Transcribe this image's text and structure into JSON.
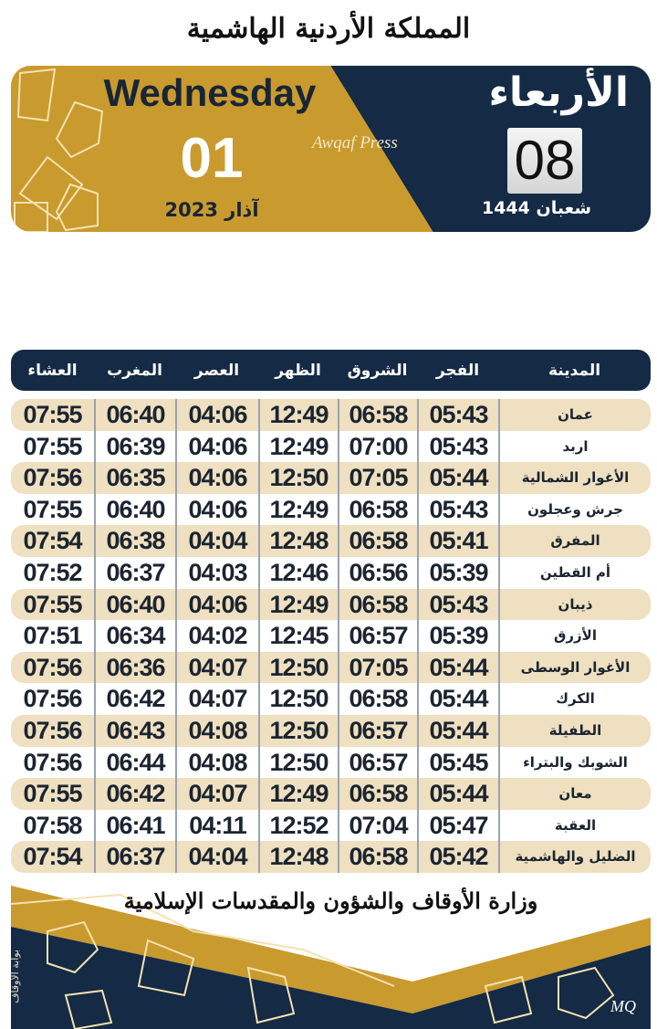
{
  "header": {
    "kingdom_title": "المملكة الأردنية الهاشمية"
  },
  "banner": {
    "weekday_en": "Wednesday",
    "gregorian_day": "01",
    "gregorian_month_year": "آذار 2023",
    "watermark": "Awqaf Press",
    "weekday_ar": "الأربعاء",
    "hijri_day": "08",
    "hijri_month_year": "شعبان 1444"
  },
  "colors": {
    "gold": "#c99a2e",
    "navy": "#142a45",
    "row_alt": "#eee0c0"
  },
  "table": {
    "columns": [
      "المدينة",
      "الفجر",
      "الشروق",
      "الظهر",
      "العصر",
      "المغرب",
      "العشاء"
    ],
    "rows": [
      [
        "عمان",
        "05:43",
        "06:58",
        "12:49",
        "04:06",
        "06:40",
        "07:55"
      ],
      [
        "اربد",
        "05:43",
        "07:00",
        "12:49",
        "04:06",
        "06:39",
        "07:55"
      ],
      [
        "الأغوار الشمالية",
        "05:44",
        "07:05",
        "12:50",
        "04:06",
        "06:35",
        "07:56"
      ],
      [
        "جرش وعجلون",
        "05:43",
        "06:58",
        "12:49",
        "04:06",
        "06:40",
        "07:55"
      ],
      [
        "المفرق",
        "05:41",
        "06:58",
        "12:48",
        "04:04",
        "06:38",
        "07:54"
      ],
      [
        "أم القطين",
        "05:39",
        "06:56",
        "12:46",
        "04:03",
        "06:37",
        "07:52"
      ],
      [
        "ذيبان",
        "05:43",
        "06:58",
        "12:49",
        "04:06",
        "06:40",
        "07:55"
      ],
      [
        "الأزرق",
        "05:39",
        "06:57",
        "12:45",
        "04:02",
        "06:34",
        "07:51"
      ],
      [
        "الأغوار الوسطى",
        "05:44",
        "07:05",
        "12:50",
        "04:07",
        "06:36",
        "07:56"
      ],
      [
        "الكرك",
        "05:44",
        "06:58",
        "12:50",
        "04:07",
        "06:42",
        "07:56"
      ],
      [
        "الطفيلة",
        "05:44",
        "06:57",
        "12:50",
        "04:08",
        "06:43",
        "07:56"
      ],
      [
        "الشوبك والبتراء",
        "05:45",
        "06:57",
        "12:50",
        "04:08",
        "06:44",
        "07:56"
      ],
      [
        "معان",
        "05:44",
        "06:58",
        "12:49",
        "04:07",
        "06:42",
        "07:55"
      ],
      [
        "العقبة",
        "05:47",
        "07:04",
        "12:52",
        "04:11",
        "06:41",
        "07:58"
      ],
      [
        "الضليل والهاشمية",
        "05:42",
        "06:58",
        "12:48",
        "04:04",
        "06:37",
        "07:54"
      ]
    ]
  },
  "footer": {
    "ministry": "وزارة الأوقاف والشؤون والمقدسات الإسلامية",
    "side_text": "بوابة الأوقاف",
    "signature": "MQ"
  }
}
